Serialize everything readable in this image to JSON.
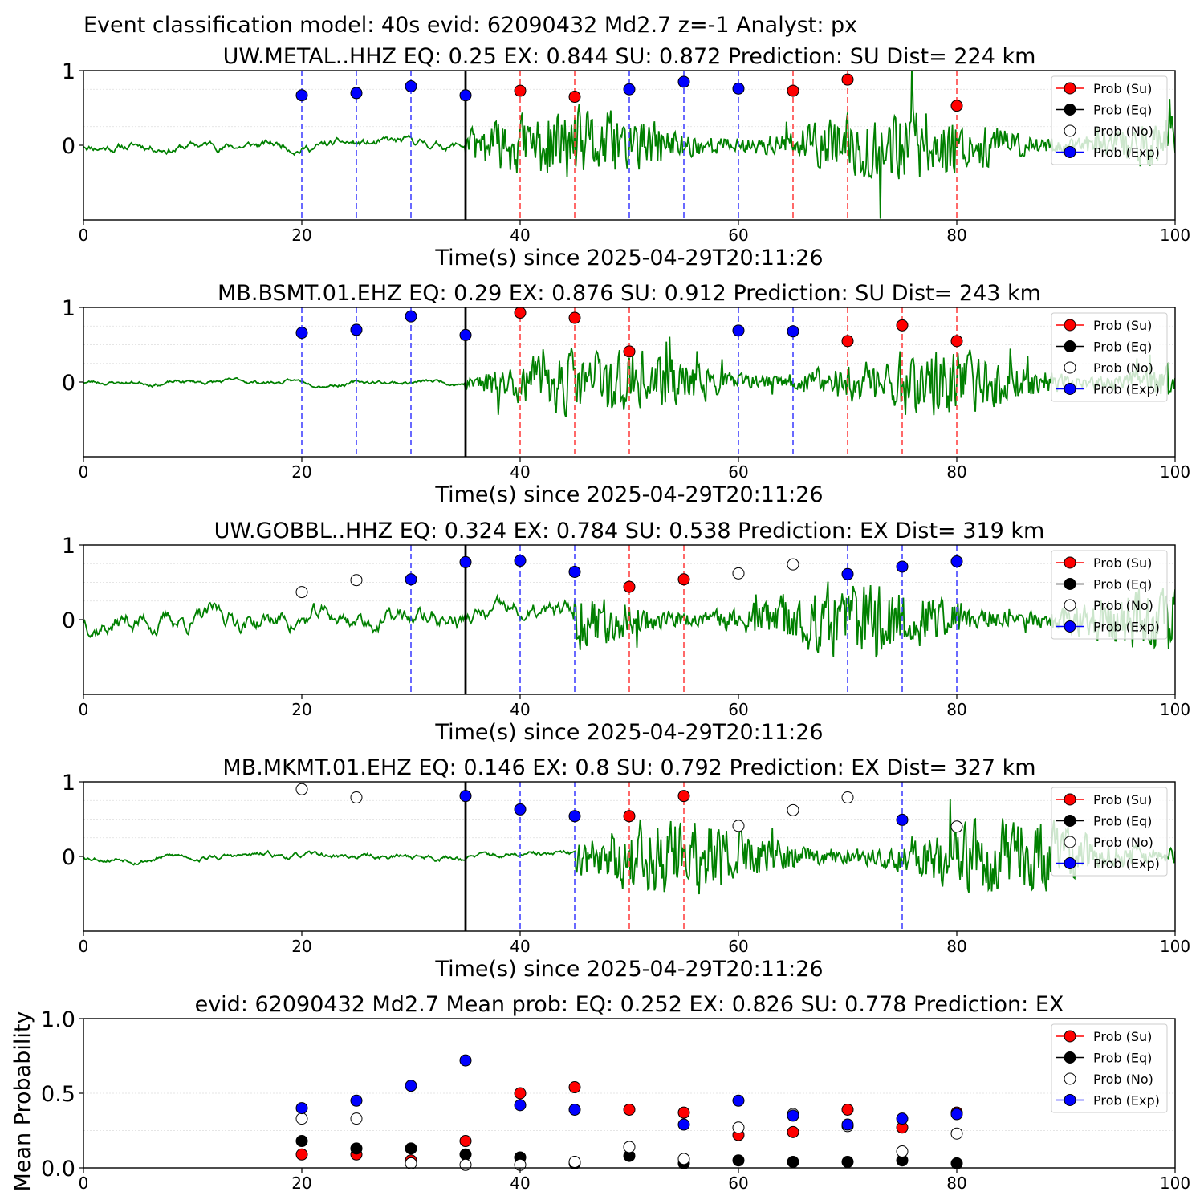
{
  "figure_title": "Event classification model: 40s evid: 62090432 Md2.7 z=-1 Analyst: px",
  "colors": {
    "waveform": "#008000",
    "su": "#ff0000",
    "eq": "#000000",
    "no": "#ffffff",
    "exp": "#0000ff",
    "su_line": "#ff4444",
    "exp_line": "#4444ff",
    "pick_line": "#000000"
  },
  "legend": {
    "placement": "top-right",
    "entries": [
      "Prob (Su)",
      "Prob (Eq)",
      "Prob (No)",
      "Prob (Exp)"
    ]
  },
  "chart_data": [
    {
      "type": "scatter",
      "panel": "station",
      "title": "UW.METAL..HHZ   EQ: 0.25  EX: 0.844  SU: 0.872   Prediction: SU    Dist= 224 km",
      "xlabel": "Time(s) since 2025-04-29T20:11:26",
      "xlim": [
        0,
        100
      ],
      "ylim": [
        -1,
        1
      ],
      "xticks": [
        0,
        20,
        40,
        60,
        80,
        100
      ],
      "yticks": [
        "1",
        "0"
      ],
      "pick_time": 35,
      "onset": 35,
      "pre_amp": 0.06,
      "post_amp": 0.3,
      "seed": 11,
      "points": [
        {
          "x": 20,
          "class": "exp",
          "y": 0.67
        },
        {
          "x": 25,
          "class": "exp",
          "y": 0.7
        },
        {
          "x": 30,
          "class": "exp",
          "y": 0.79
        },
        {
          "x": 35,
          "class": "exp",
          "y": 0.67
        },
        {
          "x": 40,
          "class": "su",
          "y": 0.73
        },
        {
          "x": 45,
          "class": "su",
          "y": 0.65
        },
        {
          "x": 50,
          "class": "exp",
          "y": 0.75
        },
        {
          "x": 55,
          "class": "exp",
          "y": 0.85
        },
        {
          "x": 60,
          "class": "exp",
          "y": 0.76
        },
        {
          "x": 65,
          "class": "su",
          "y": 0.73
        },
        {
          "x": 70,
          "class": "su",
          "y": 0.88
        },
        {
          "x": 80,
          "class": "su",
          "y": 0.53
        }
      ]
    },
    {
      "type": "scatter",
      "panel": "station",
      "title": "MB.BSMT.01.EHZ   EQ: 0.29  EX: 0.876  SU: 0.912   Prediction: SU    Dist= 243 km",
      "xlabel": "Time(s) since 2025-04-29T20:11:26",
      "xlim": [
        0,
        100
      ],
      "ylim": [
        -1,
        1
      ],
      "xticks": [
        0,
        20,
        40,
        60,
        80,
        100
      ],
      "yticks": [
        "1",
        "0"
      ],
      "pick_time": 35,
      "onset": 35,
      "pre_amp": 0.03,
      "post_amp": 0.28,
      "seed": 23,
      "points": [
        {
          "x": 20,
          "class": "exp",
          "y": 0.66
        },
        {
          "x": 25,
          "class": "exp",
          "y": 0.7
        },
        {
          "x": 30,
          "class": "exp",
          "y": 0.88
        },
        {
          "x": 35,
          "class": "exp",
          "y": 0.63
        },
        {
          "x": 40,
          "class": "su",
          "y": 0.93
        },
        {
          "x": 45,
          "class": "su",
          "y": 0.86
        },
        {
          "x": 50,
          "class": "su",
          "y": 0.41
        },
        {
          "x": 60,
          "class": "exp",
          "y": 0.69
        },
        {
          "x": 65,
          "class": "exp",
          "y": 0.68
        },
        {
          "x": 70,
          "class": "su",
          "y": 0.55
        },
        {
          "x": 75,
          "class": "su",
          "y": 0.76
        },
        {
          "x": 80,
          "class": "su",
          "y": 0.55
        }
      ]
    },
    {
      "type": "scatter",
      "panel": "station",
      "title": "UW.GOBBL..HHZ   EQ: 0.324  EX: 0.784  SU: 0.538   Prediction: EX    Dist= 319 km",
      "xlabel": "Time(s) since 2025-04-29T20:11:26",
      "xlim": [
        0,
        100
      ],
      "ylim": [
        -1,
        1
      ],
      "xticks": [
        0,
        20,
        40,
        60,
        80,
        100
      ],
      "yticks": [
        "1",
        "0"
      ],
      "pick_time": 35,
      "onset": 45,
      "pre_amp": 0.14,
      "post_amp": 0.3,
      "seed": 37,
      "points": [
        {
          "x": 20,
          "class": "no",
          "y": 0.37
        },
        {
          "x": 25,
          "class": "no",
          "y": 0.53
        },
        {
          "x": 30,
          "class": "exp",
          "y": 0.54
        },
        {
          "x": 35,
          "class": "exp",
          "y": 0.77
        },
        {
          "x": 40,
          "class": "exp",
          "y": 0.79
        },
        {
          "x": 45,
          "class": "exp",
          "y": 0.64
        },
        {
          "x": 50,
          "class": "su",
          "y": 0.44
        },
        {
          "x": 55,
          "class": "su",
          "y": 0.54
        },
        {
          "x": 60,
          "class": "no",
          "y": 0.62
        },
        {
          "x": 65,
          "class": "no",
          "y": 0.74
        },
        {
          "x": 70,
          "class": "exp",
          "y": 0.61
        },
        {
          "x": 75,
          "class": "exp",
          "y": 0.71
        },
        {
          "x": 80,
          "class": "exp",
          "y": 0.78
        }
      ]
    },
    {
      "type": "scatter",
      "panel": "station",
      "title": "MB.MKMT.01.EHZ   EQ: 0.146  EX: 0.8  SU: 0.792   Prediction: EX    Dist= 327 km",
      "xlabel": "Time(s) since 2025-04-29T20:11:26",
      "xlim": [
        0,
        100
      ],
      "ylim": [
        -1,
        1
      ],
      "xticks": [
        0,
        20,
        40,
        60,
        80,
        100
      ],
      "yticks": [
        "1",
        "0"
      ],
      "pick_time": 35,
      "onset": 45,
      "pre_amp": 0.04,
      "post_amp": 0.32,
      "seed": 53,
      "points": [
        {
          "x": 20,
          "class": "no",
          "y": 0.9
        },
        {
          "x": 25,
          "class": "no",
          "y": 0.79
        },
        {
          "x": 35,
          "class": "exp",
          "y": 0.81
        },
        {
          "x": 40,
          "class": "exp",
          "y": 0.63
        },
        {
          "x": 45,
          "class": "exp",
          "y": 0.54
        },
        {
          "x": 50,
          "class": "su",
          "y": 0.54
        },
        {
          "x": 55,
          "class": "su",
          "y": 0.81
        },
        {
          "x": 60,
          "class": "no",
          "y": 0.41
        },
        {
          "x": 65,
          "class": "no",
          "y": 0.62
        },
        {
          "x": 70,
          "class": "no",
          "y": 0.79
        },
        {
          "x": 75,
          "class": "exp",
          "y": 0.49
        },
        {
          "x": 80,
          "class": "no",
          "y": 0.4
        }
      ]
    },
    {
      "type": "scatter",
      "panel": "mean",
      "title": "evid: 62090432  Md2.7   Mean prob:   EQ: 0.252  EX: 0.826  SU: 0.778   Prediction: EX",
      "xlabel": "",
      "ylabel": "Mean Probability",
      "xlim": [
        0,
        100
      ],
      "ylim": [
        0,
        1
      ],
      "xticks": [
        0,
        20,
        40,
        60,
        80,
        100
      ],
      "yticks": [
        "0.0",
        "0.5",
        "1.0"
      ],
      "series": [
        {
          "name": "Prob (Su)",
          "class": "su",
          "x": [
            20,
            25,
            30,
            35,
            40,
            45,
            50,
            55,
            60,
            65,
            70,
            75,
            80
          ],
          "values": [
            0.09,
            0.09,
            0.05,
            0.18,
            0.5,
            0.54,
            0.39,
            0.37,
            0.22,
            0.24,
            0.39,
            0.27,
            0.37
          ]
        },
        {
          "name": "Prob (Eq)",
          "class": "eq",
          "x": [
            20,
            25,
            30,
            35,
            40,
            45,
            50,
            55,
            60,
            65,
            70,
            75,
            80
          ],
          "values": [
            0.18,
            0.13,
            0.13,
            0.09,
            0.07,
            0.03,
            0.08,
            0.03,
            0.05,
            0.04,
            0.04,
            0.05,
            0.03
          ]
        },
        {
          "name": "Prob (No)",
          "class": "no",
          "x": [
            20,
            25,
            30,
            35,
            40,
            45,
            50,
            55,
            60,
            65,
            70,
            75,
            80
          ],
          "values": [
            0.33,
            0.33,
            0.03,
            0.02,
            0.02,
            0.04,
            0.14,
            0.06,
            0.27,
            0.36,
            0.28,
            0.11,
            0.23
          ]
        },
        {
          "name": "Prob (Exp)",
          "class": "exp",
          "x": [
            20,
            25,
            30,
            35,
            40,
            45,
            50,
            55,
            60,
            65,
            70,
            75,
            80
          ],
          "values": [
            0.4,
            0.45,
            0.55,
            0.72,
            0.42,
            0.39,
            null,
            0.29,
            0.45,
            0.35,
            0.29,
            0.33,
            0.36
          ]
        }
      ]
    }
  ]
}
